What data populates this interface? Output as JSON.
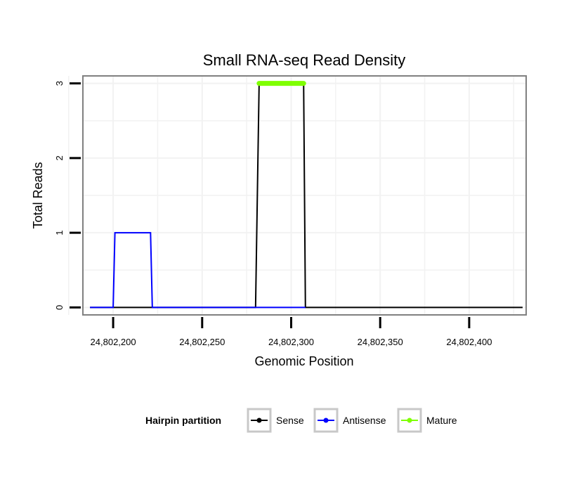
{
  "chart_data": {
    "type": "line",
    "title": "Small RNA-seq Read Density",
    "xlabel": "Genomic Position",
    "ylabel": "Total Reads",
    "xlim": [
      24802183,
      24802432
    ],
    "ylim": [
      -0.1,
      3.1
    ],
    "xticks": [
      24802200,
      24802250,
      24802300,
      24802350,
      24802400
    ],
    "xtick_labels": [
      "24,802,200",
      "24,802,250",
      "24,802,300",
      "24,802,350",
      "24,802,400"
    ],
    "yticks": [
      0,
      1,
      2,
      3
    ],
    "ytick_labels": [
      "0",
      "1",
      "2",
      "3"
    ],
    "grid": true,
    "legend": {
      "title": "Hairpin partition",
      "position": "bottom",
      "entries": [
        "Sense",
        "Antisense",
        "Mature"
      ]
    },
    "series": [
      {
        "name": "Sense",
        "color": "#000000",
        "points": [
          [
            24802187,
            0
          ],
          [
            24802280,
            0
          ],
          [
            24802282,
            3
          ],
          [
            24802307,
            3
          ],
          [
            24802308,
            0
          ],
          [
            24802430,
            0
          ]
        ]
      },
      {
        "name": "Antisense",
        "color": "#0000ff",
        "points": [
          [
            24802187,
            0
          ],
          [
            24802200,
            0
          ],
          [
            24802201,
            1
          ],
          [
            24802221,
            1
          ],
          [
            24802222,
            0
          ],
          [
            24802308,
            0
          ]
        ]
      },
      {
        "name": "Mature",
        "color": "#7fff00",
        "points": [
          [
            24802282,
            3
          ],
          [
            24802307,
            3
          ]
        ]
      }
    ]
  }
}
